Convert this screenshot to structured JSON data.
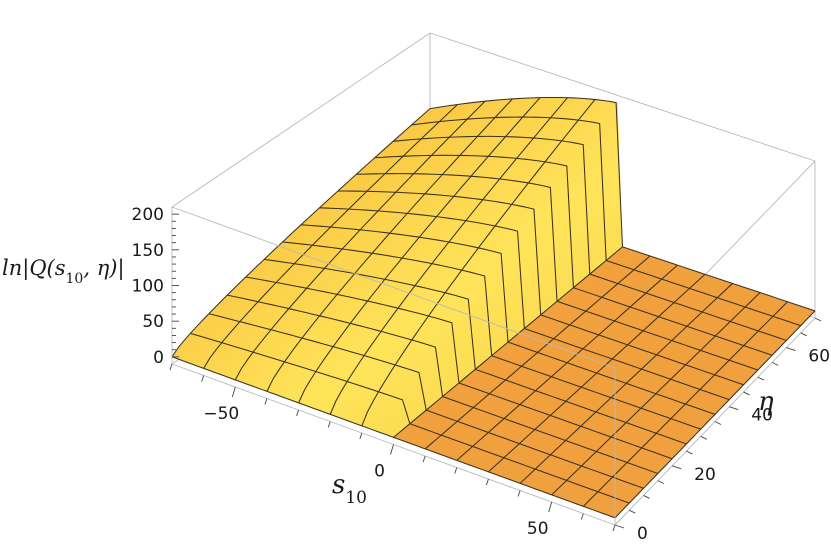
{
  "chart_data": {
    "type": "surface3d",
    "title": "",
    "xlabel": "s",
    "xlabel_sub": "10",
    "ylabel": "η",
    "zlabel": "ln|Q(s",
    "zlabel_sub": "10",
    "zlabel_tail": ", η)|",
    "xlim": [
      -70,
      70
    ],
    "ylim": [
      0,
      70
    ],
    "zlim": [
      -10,
      210
    ],
    "x_ticks": [
      -50,
      0,
      50
    ],
    "x_tick_labels": [
      "−50",
      "0",
      "50"
    ],
    "y_ticks": [
      0,
      20,
      40,
      60
    ],
    "y_tick_labels": [
      "0",
      "20",
      "40",
      "60"
    ],
    "z_ticks": [
      0,
      50,
      100,
      150,
      200
    ],
    "z_tick_labels": [
      "0",
      "50",
      "100",
      "150",
      "200"
    ],
    "surface": {
      "description_formula": "z = 0 for s10 >= 0; z ≈ 3·sqrt(eta·(eta − s10)) − 3·sqrt(|s10|·... ) approximate ridge shape, maximum ~ 200 at s10 = 0, eta = 70",
      "samples": [
        {
          "s10": -70,
          "eta": 0,
          "z": 0
        },
        {
          "s10": -70,
          "eta": 70,
          "z": 105
        },
        {
          "s10": -35,
          "eta": 70,
          "z": 160
        },
        {
          "s10": 0,
          "eta": 0,
          "z": 0
        },
        {
          "s10": 0,
          "eta": 35,
          "z": 100
        },
        {
          "s10": 0,
          "eta": 70,
          "z": 200
        },
        {
          "s10": 35,
          "eta": 70,
          "z": 0
        },
        {
          "s10": 70,
          "eta": 70,
          "z": 0
        }
      ]
    },
    "colors": {
      "surface_light": "#ffe45a",
      "surface_mid": "#f9c440",
      "surface_dark": "#e9892c",
      "mesh": "#3c3222",
      "box": "#b9b9b9"
    },
    "grid": false,
    "legend": "none"
  }
}
